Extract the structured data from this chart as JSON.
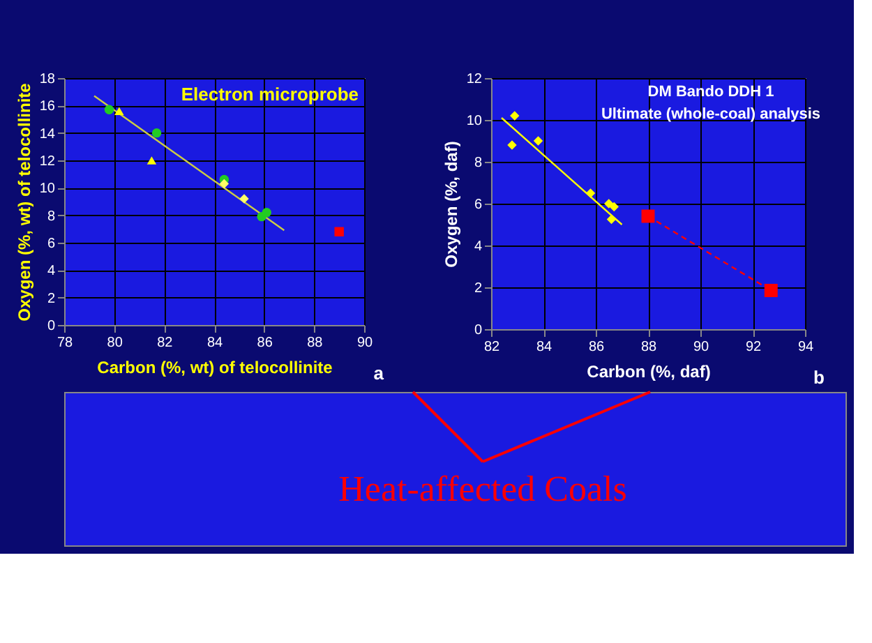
{
  "chart_data": [
    {
      "type": "scatter",
      "title": "Electron microprobe",
      "xlabel": "Carbon (%, wt) of telocollinite",
      "ylabel": "Oxygen (%, wt) of telocollinite",
      "xlim": [
        78,
        90
      ],
      "xticks": [
        78,
        80,
        82,
        84,
        86,
        88,
        90
      ],
      "ylim": [
        0,
        18
      ],
      "yticks": [
        0,
        2,
        4,
        6,
        8,
        10,
        12,
        14,
        16,
        18
      ],
      "grid": true,
      "series": [
        {
          "type": "line",
          "color": "#cccc44",
          "marker": "none",
          "line_style": "solid",
          "x": [
            79.2,
            86.8
          ],
          "values": [
            16.7,
            6.9
          ]
        },
        {
          "type": "scatter",
          "color": "#22cc22",
          "marker": "circle",
          "x": [
            79.8,
            81.7,
            85.9,
            84.4,
            86.1
          ],
          "values": [
            15.7,
            14.0,
            7.9,
            10.6,
            8.2
          ]
        },
        {
          "type": "scatter",
          "color": "#ffff00",
          "marker": "triangle",
          "x": [
            80.2,
            81.5
          ],
          "values": [
            15.6,
            12.0
          ]
        },
        {
          "type": "scatter",
          "color": "#ffff66",
          "marker": "diamond",
          "x": [
            84.4,
            85.2
          ],
          "values": [
            10.3,
            9.2
          ]
        },
        {
          "type": "scatter",
          "color": "#ff0000",
          "marker": "square",
          "x": [
            89.0
          ],
          "values": [
            6.8
          ]
        }
      ],
      "annotations": [
        "a"
      ]
    },
    {
      "type": "scatter",
      "title": "DM Bando DDH 1",
      "subtitle": "Ultimate (whole-coal) analysis",
      "xlabel": "Carbon (%, daf)",
      "ylabel": "Oxygen (%, daf)",
      "xlim": [
        82,
        94
      ],
      "xticks": [
        82,
        84,
        86,
        88,
        90,
        92,
        94
      ],
      "ylim": [
        0,
        12
      ],
      "yticks": [
        0,
        2,
        4,
        6,
        8,
        10,
        12
      ],
      "grid": true,
      "series": [
        {
          "type": "line",
          "color": "#ffff00",
          "marker": "none",
          "line_style": "solid",
          "x": [
            82.4,
            87.0
          ],
          "values": [
            10.1,
            5.0
          ]
        },
        {
          "type": "scatter",
          "color": "#ffff00",
          "marker": "diamond",
          "x": [
            82.9,
            82.8,
            83.8,
            85.8,
            86.5,
            86.7,
            86.6
          ],
          "values": [
            10.2,
            8.8,
            9.0,
            6.5,
            6.0,
            5.85,
            5.25
          ]
        },
        {
          "type": "line",
          "color": "#ff0000",
          "marker": "square",
          "line_style": "dashed",
          "x": [
            88.0,
            92.7
          ],
          "values": [
            5.4,
            1.85
          ]
        }
      ],
      "annotations": [
        "b",
        "Heat-affected Coals"
      ]
    }
  ]
}
